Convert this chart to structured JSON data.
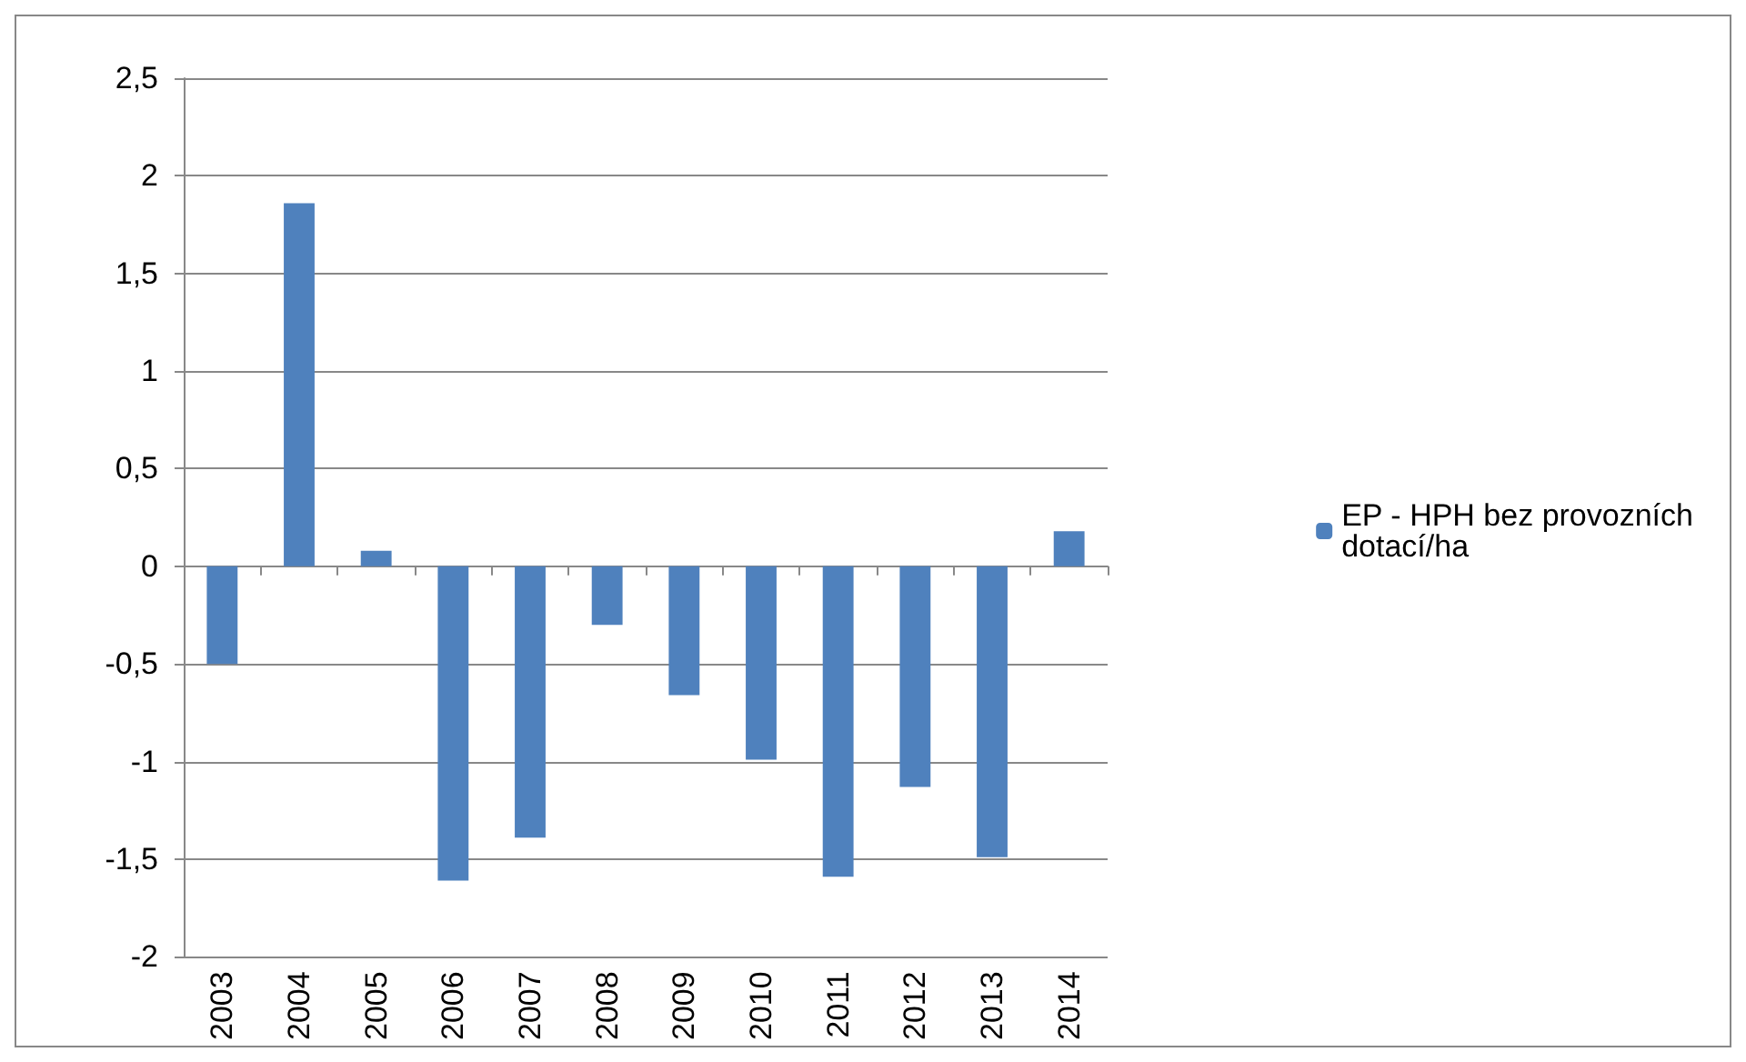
{
  "chart_data": {
    "type": "bar",
    "categories": [
      "2003",
      "2004",
      "2005",
      "2006",
      "2007",
      "2008",
      "2009",
      "2010",
      "2011",
      "2012",
      "2013",
      "2014"
    ],
    "series": [
      {
        "name": "EP - HPH bez provozních dotací/ha",
        "color": "#4f81bd",
        "values": [
          -0.5,
          1.86,
          0.08,
          -1.61,
          -1.39,
          -0.3,
          -0.66,
          -0.99,
          -1.59,
          -1.13,
          -1.49,
          0.18
        ]
      }
    ],
    "ylim": [
      -2,
      2.5
    ],
    "yticks": [
      -2,
      {
        "value": -1.5,
        "label": "-1,5"
      },
      -1,
      {
        "value": -0.5,
        "label": "-0,5"
      },
      0,
      {
        "value": 0.5,
        "label": "0,5"
      },
      1,
      {
        "value": 1.5,
        "label": "1,5"
      },
      2,
      {
        "value": 2.5,
        "label": "2,5"
      }
    ],
    "grid": "y",
    "legend": "right"
  }
}
